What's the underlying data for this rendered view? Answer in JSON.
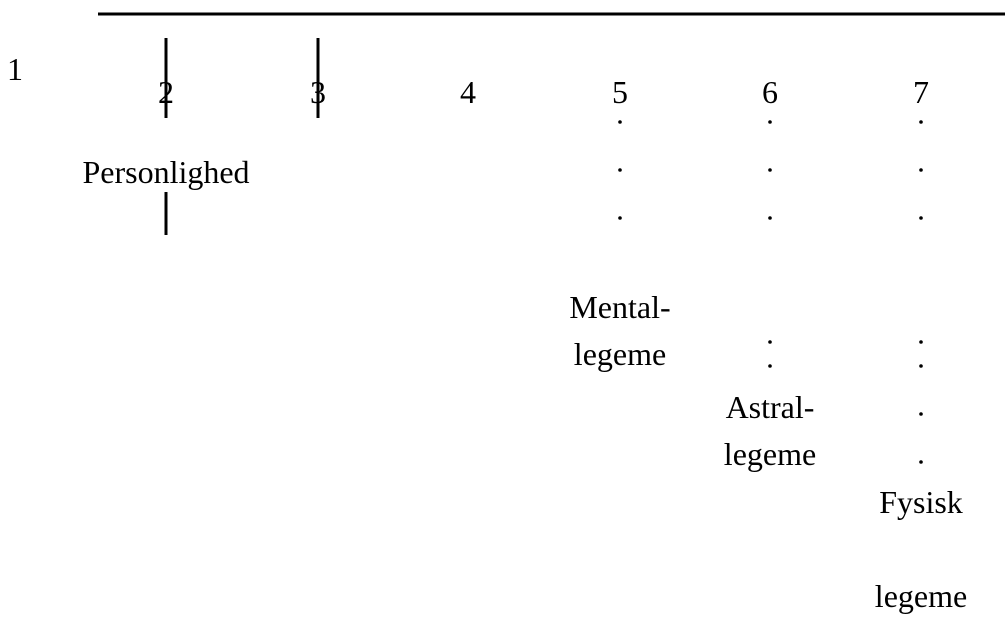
{
  "levels": [
    "1",
    "2",
    "3",
    "4",
    "5",
    "6",
    "7"
  ],
  "labels": [
    {
      "lines": [
        "Personlighed"
      ]
    },
    {
      "lines": [
        "Mental-",
        "legeme"
      ]
    },
    {
      "lines": [
        "Astral-",
        "legeme"
      ]
    },
    {
      "lines": [
        "Fysisk",
        "legeme"
      ]
    }
  ]
}
